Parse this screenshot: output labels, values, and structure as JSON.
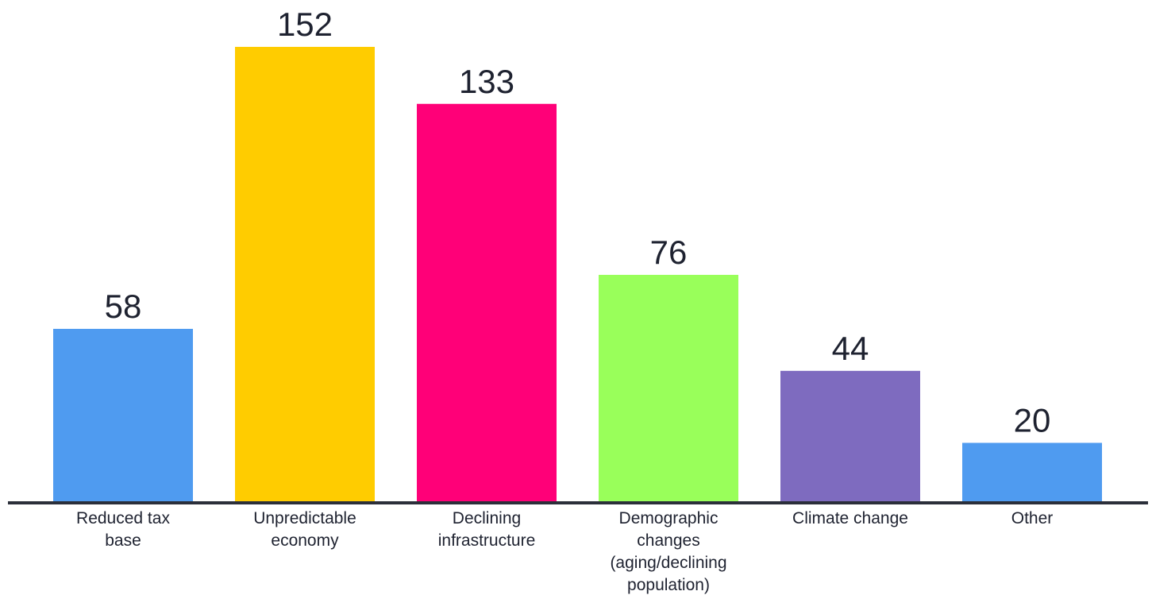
{
  "chart_data": {
    "type": "bar",
    "categories": [
      [
        "Reduced tax",
        "base"
      ],
      [
        "Unpredictable",
        "economy"
      ],
      [
        "Declining",
        "infrastructure"
      ],
      [
        "Demographic",
        "changes",
        "(aging/declining",
        "population)"
      ],
      [
        "Climate change"
      ],
      [
        "Other"
      ]
    ],
    "values": [
      58,
      152,
      133,
      76,
      44,
      20
    ],
    "data_labels": [
      "58",
      "152",
      "133",
      "76",
      "44",
      "20"
    ],
    "colors": [
      "#4f9bf0",
      "#ffcc00",
      "#ff0078",
      "#99ff5a",
      "#7e6bbf",
      "#4f9bf0"
    ],
    "axis_color": "#2b2f3a",
    "title": "",
    "xlabel": "",
    "ylabel": "",
    "ylim": [
      0,
      152
    ],
    "grid": false,
    "legend": "none"
  }
}
